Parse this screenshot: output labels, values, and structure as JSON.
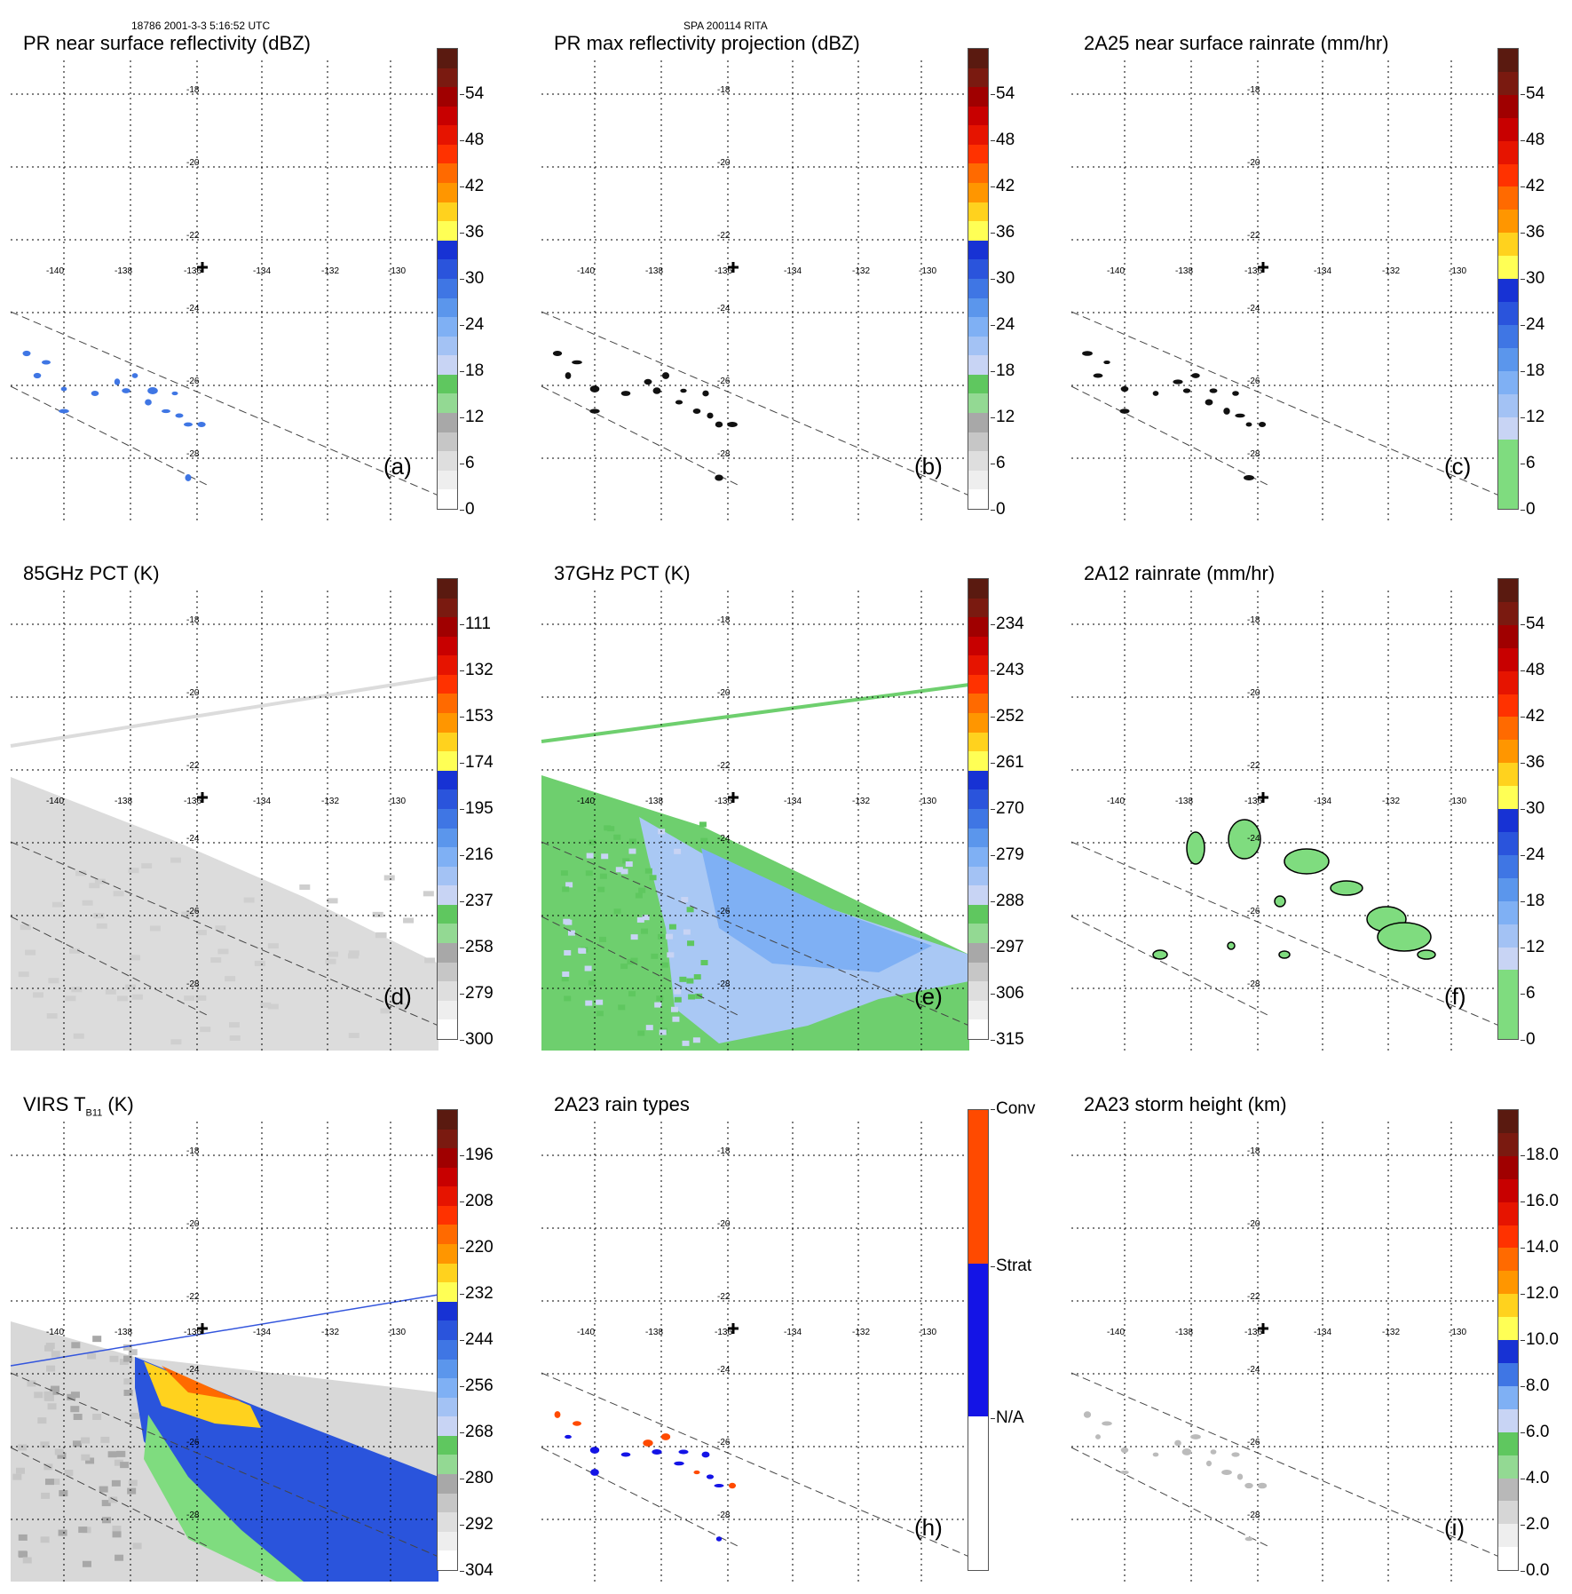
{
  "header": {
    "left": "18786 2001-3-3 5:16:52 UTC",
    "center": "SPA 200114 RITA"
  },
  "grid": {
    "lon_labels": [
      "-140",
      "-138",
      "-136",
      "-134",
      "-132",
      "-130"
    ],
    "lat_labels": [
      "-18",
      "-20",
      "-22",
      "-24",
      "-26",
      "-28"
    ]
  },
  "panels": [
    {
      "id": "a",
      "title": "PR near surface reflectivity (dBZ)",
      "label": "(a)",
      "ticks": [
        "0",
        "6",
        "12",
        "18",
        "24",
        "30",
        "36",
        "42",
        "48",
        "54"
      ],
      "scale": "dbz",
      "field": "pr_ref"
    },
    {
      "id": "b",
      "title": "PR max reflectivity projection (dBZ)",
      "label": "(b)",
      "ticks": [
        "0",
        "6",
        "12",
        "18",
        "24",
        "30",
        "36",
        "42",
        "48",
        "54"
      ],
      "scale": "dbz",
      "field": "pr_max"
    },
    {
      "id": "c",
      "title": "2A25 near surface rainrate (mm/hr)",
      "label": "(c)",
      "ticks": [
        "0",
        "6",
        "12",
        "18",
        "24",
        "30",
        "36",
        "42",
        "48",
        "54"
      ],
      "scale": "rain",
      "field": "pr_rain"
    },
    {
      "id": "d",
      "title": "85GHz PCT (K)",
      "label": "(d)",
      "ticks": [
        "300",
        "279",
        "258",
        "237",
        "216",
        "195",
        "174",
        "153",
        "132",
        "111"
      ],
      "scale": "dbz",
      "field": "pct85"
    },
    {
      "id": "e",
      "title": "37GHz PCT (K)",
      "label": "(e)",
      "ticks": [
        "315",
        "306",
        "297",
        "288",
        "279",
        "270",
        "261",
        "252",
        "243",
        "234"
      ],
      "scale": "dbz",
      "field": "pct37"
    },
    {
      "id": "f",
      "title": "2A12 rainrate (mm/hr)",
      "label": "(f)",
      "ticks": [
        "0",
        "6",
        "12",
        "18",
        "24",
        "30",
        "36",
        "42",
        "48",
        "54"
      ],
      "scale": "rain",
      "field": "tmi_rain"
    },
    {
      "id": "g",
      "title": "VIRS T",
      "title_sub": "B11",
      "title_suffix": " (K)",
      "label": "",
      "ticks": [
        "304",
        "292",
        "280",
        "268",
        "256",
        "244",
        "232",
        "220",
        "208",
        "196"
      ],
      "scale": "dbz",
      "field": "virs"
    },
    {
      "id": "h",
      "title": "2A23 rain types",
      "label": "(h)",
      "ticks": [
        "N/A",
        "Strat",
        "Conv"
      ],
      "scale": "types",
      "field": "types"
    },
    {
      "id": "i",
      "title": "2A23 storm height (km)",
      "label": "(i)",
      "ticks": [
        "0.0",
        "2.0",
        "4.0",
        "6.0",
        "8.0",
        "10.0",
        "12.0",
        "14.0",
        "16.0",
        "18.0"
      ],
      "scale": "height",
      "field": "height"
    }
  ],
  "colors": {
    "dbz": [
      "#ffffff",
      "#eeeeee",
      "#dedede",
      "#c6c6c6",
      "#a8a8a8",
      "#93d993",
      "#5fc75f",
      "#c8d4f4",
      "#a3c2f4",
      "#7fb0f4",
      "#5b96ec",
      "#3f76e4",
      "#2a54dc",
      "#1732d4",
      "#ffff55",
      "#ffd21e",
      "#ff9600",
      "#ff6a00",
      "#ff3200",
      "#e61400",
      "#c80000",
      "#a00000",
      "#7a1a10",
      "#5a1a10"
    ],
    "rain": [
      "#7fdc7f",
      "#7fdc7f",
      "#7fdc7f",
      "#c8d4f4",
      "#a3c2f4",
      "#7fb0f4",
      "#5b96ec",
      "#3f76e4",
      "#2a54dc",
      "#1732d4",
      "#ffff55",
      "#ffd21e",
      "#ff9600",
      "#ff6a00",
      "#ff3200",
      "#e61400",
      "#c80000",
      "#a00000",
      "#7a1a10",
      "#5a1a10"
    ],
    "types": [
      "#ffffff",
      "#ffffff",
      "#1414e6",
      "#1414e6",
      "#ff4a00",
      "#ff4a00"
    ],
    "height": [
      "#ffffff",
      "#eeeeee",
      "#d6d6d6",
      "#b8b8b8",
      "#93d993",
      "#5fc75f",
      "#c8d4f4",
      "#7fb0f4",
      "#3f76e4",
      "#1732d4",
      "#ffff55",
      "#ffd21e",
      "#ff9600",
      "#ff6a00",
      "#ff3200",
      "#e61400",
      "#c80000",
      "#a00000",
      "#7a1a10",
      "#5a1a10"
    ]
  }
}
